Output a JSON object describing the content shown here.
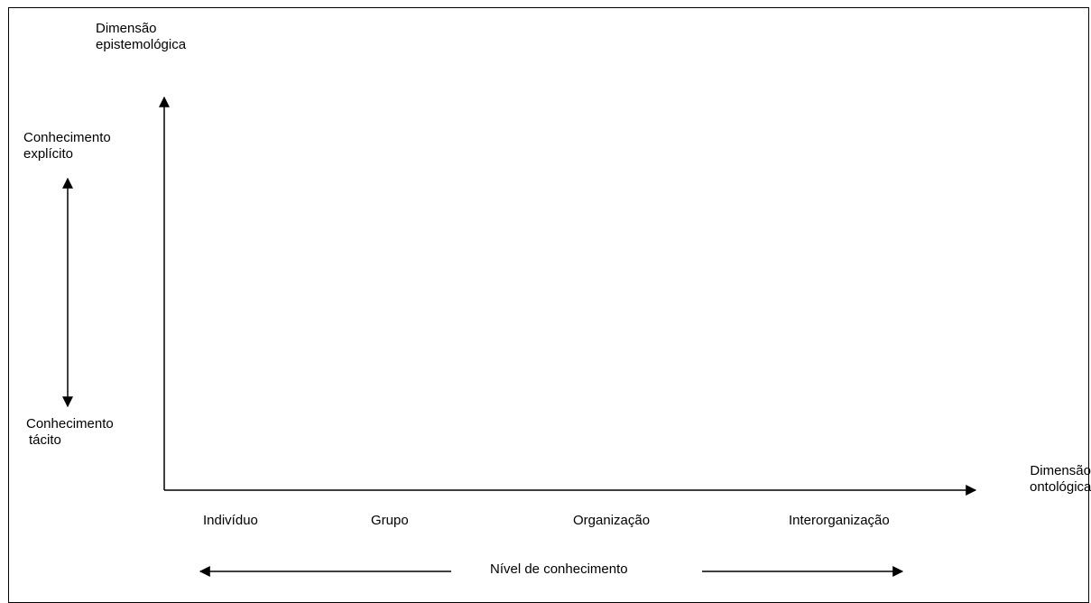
{
  "diagram": {
    "y_axis_title": {
      "line1": "Dimensão",
      "line2": "epistemológica"
    },
    "x_axis_title": {
      "line1": "Dimensão",
      "line2": "ontológica"
    },
    "explicit_label": {
      "line1": "Conhecimento",
      "line2": "explícito"
    },
    "tacit_label": {
      "line1": "Conhecimento",
      "line2": "tácito"
    },
    "levels": [
      "Indivíduo",
      "Grupo",
      "Organização",
      "Interorganização"
    ],
    "bottom_label": "Nível de conhecimento",
    "line_color": "#000000"
  }
}
